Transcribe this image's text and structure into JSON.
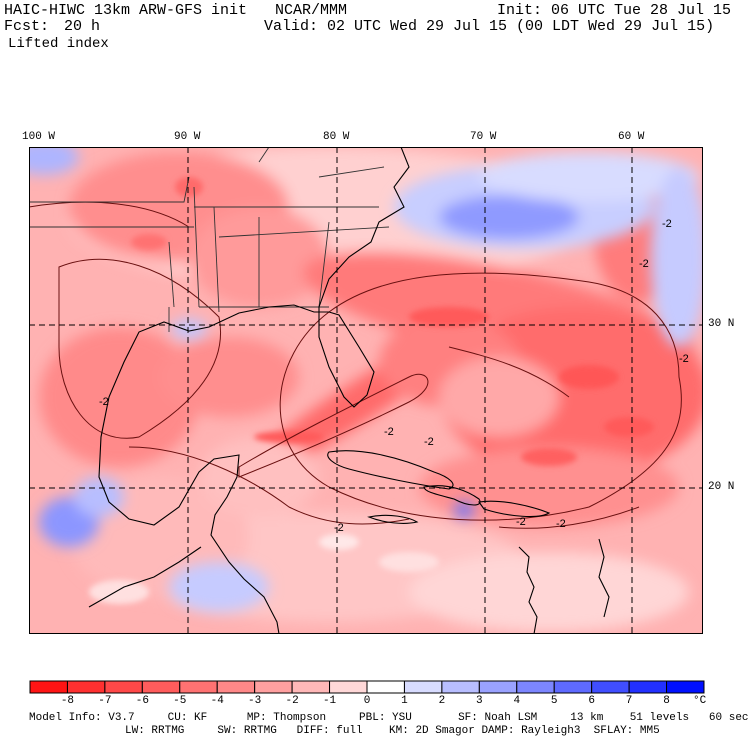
{
  "header": {
    "model_title": "HAIC-HIWC 13km ARW-GFS init",
    "organization": "NCAR/MMM",
    "init_time": "Init: 06 UTC Tue 28 Jul 15",
    "forecast_label": "Fcst:",
    "forecast_hours": "20 h",
    "valid_time": "Valid: 02 UTC Wed 29 Jul 15 (00 LDT Wed 29 Jul 15)",
    "field_name": "Lifted index"
  },
  "map": {
    "longitude_labels": [
      "100 W",
      "90 W",
      "80 W",
      "70 W",
      "60 W"
    ],
    "latitude_labels": [
      "30 N",
      "20 N"
    ],
    "contour_labels": [
      "-2",
      "-2",
      "-2",
      "-2",
      "-2",
      "-2",
      "-2",
      "-2",
      "-2"
    ]
  },
  "colorbar": {
    "ticks": [
      "-8",
      "-7",
      "-6",
      "-5",
      "-4",
      "-3",
      "-2",
      "-1",
      "0",
      "1",
      "2",
      "3",
      "4",
      "5",
      "6",
      "7",
      "8"
    ],
    "unit": "°C",
    "colors": [
      "#ff1414",
      "#ff3030",
      "#ff4848",
      "#ff5c5c",
      "#ff7272",
      "#ff8888",
      "#ffa0a0",
      "#ffb8b8",
      "#ffd8d8",
      "#ffffff",
      "#d8dcff",
      "#b8beff",
      "#9aa2ff",
      "#7c86ff",
      "#5e6aff",
      "#404eff",
      "#2230ff",
      "#0010ff"
    ]
  },
  "model_info": {
    "line1": "Model Info: V3.7     CU: KF      MP: Thompson     PBL: YSU       SF: Noah LSM     13 km    51 levels   60 sec",
    "line2": "LW: RRTMG     SW: RRTMG   DIFF: full    KM: 2D Smagor DAMP: Rayleigh3  SFLAY: MM5"
  }
}
